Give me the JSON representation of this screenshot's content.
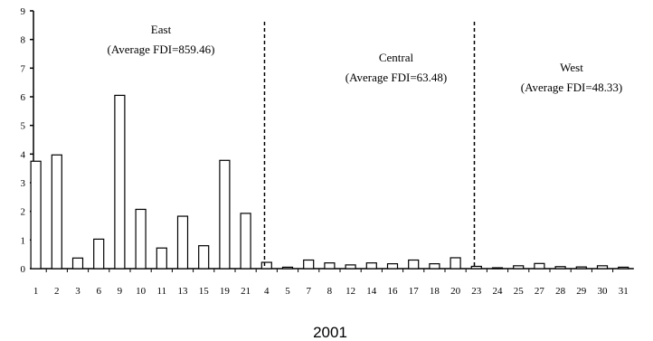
{
  "chart_data": {
    "type": "bar",
    "title": "",
    "xlabel": "2001",
    "ylabel": "",
    "ylim": [
      0,
      9
    ],
    "yticks": [
      "0",
      "1",
      "2",
      "3",
      "4",
      "5",
      "6",
      "7",
      "8",
      "9"
    ],
    "grid": false,
    "categories": [
      "1",
      "2",
      "3",
      "6",
      "9",
      "10",
      "11",
      "13",
      "15",
      "19",
      "21",
      "4",
      "5",
      "7",
      "8",
      "12",
      "14",
      "16",
      "17",
      "18",
      "20",
      "23",
      "24",
      "25",
      "27",
      "28",
      "29",
      "30",
      "31"
    ],
    "values": [
      3.75,
      3.97,
      0.37,
      1.03,
      6.05,
      2.07,
      0.72,
      1.83,
      0.8,
      3.78,
      1.93,
      0.22,
      0.05,
      0.3,
      0.2,
      0.13,
      0.2,
      0.17,
      0.3,
      0.17,
      0.38,
      0.08,
      0.03,
      0.1,
      0.18,
      0.07,
      0.06,
      0.1,
      0.05
    ],
    "regions": [
      {
        "name": "East",
        "average_label": "(Average FDI=859.46)"
      },
      {
        "name": "Central",
        "average_label": "(Average FDI=63.48)"
      },
      {
        "name": "West",
        "average_label": "(Average FDI=48.33)"
      }
    ]
  }
}
